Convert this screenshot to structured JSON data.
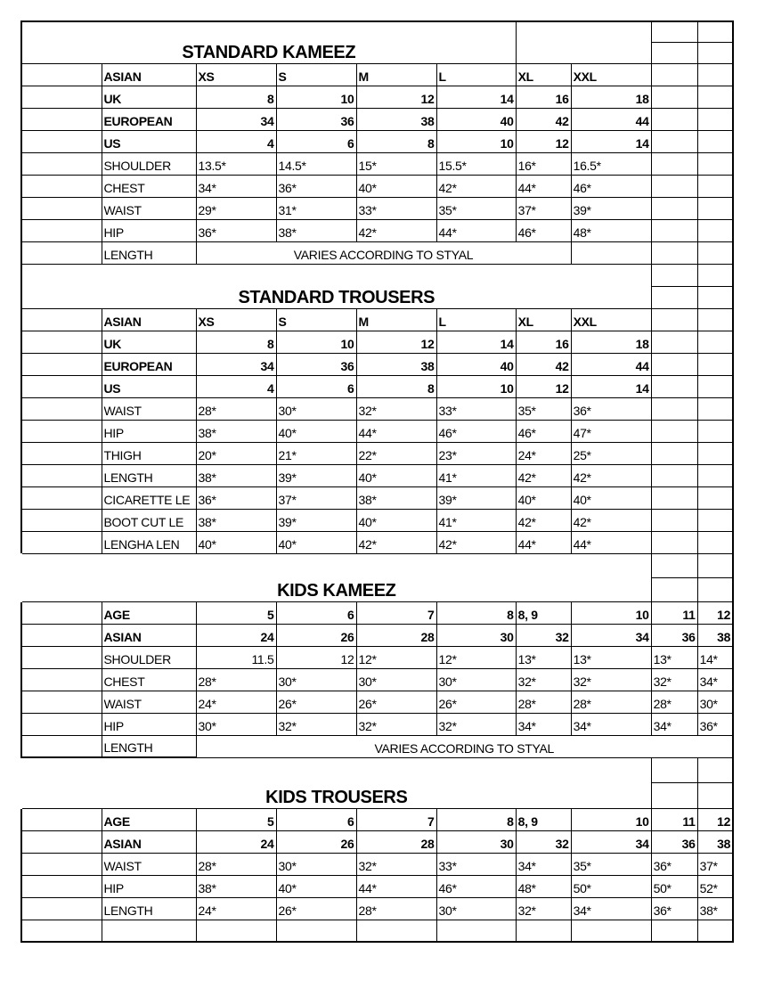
{
  "sections": [
    {
      "title": "STANDARD KAMEEZ",
      "rows": [
        {
          "label": "ASIAN",
          "emphasis": true,
          "values": [
            "XS",
            "S",
            "M",
            "L",
            "XL",
            "XXL"
          ]
        },
        {
          "label": "UK",
          "emphasis": true,
          "values": [
            "8",
            "10",
            "12",
            "14",
            "16",
            "18"
          ]
        },
        {
          "label": "EUROPEAN",
          "emphasis": true,
          "values": [
            "34",
            "36",
            "38",
            "40",
            "42",
            "44"
          ]
        },
        {
          "label": "US",
          "emphasis": true,
          "values": [
            "4",
            "6",
            "8",
            "10",
            "12",
            "14"
          ]
        },
        {
          "label": "SHOULDER",
          "values": [
            "13.5*",
            "14.5*",
            "15*",
            "15.5*",
            "16*",
            "16.5*"
          ]
        },
        {
          "label": "CHEST",
          "values": [
            "34*",
            "36*",
            "40*",
            "42*",
            "44*",
            "46*"
          ]
        },
        {
          "label": "WAIST",
          "values": [
            "29*",
            "31*",
            "33*",
            "35*",
            "37*",
            "39*"
          ]
        },
        {
          "label": "HIP",
          "values": [
            "36*",
            "38*",
            "42*",
            "44*",
            "46*",
            "48*"
          ]
        },
        {
          "label": "LENGTH",
          "note": "VARIES ACCORDING TO STYAL"
        }
      ]
    },
    {
      "title": "STANDARD TROUSERS",
      "rows": [
        {
          "label": "ASIAN",
          "emphasis": true,
          "values": [
            "XS",
            "S",
            "M",
            "L",
            "XL",
            "XXL"
          ]
        },
        {
          "label": "UK",
          "emphasis": true,
          "values": [
            "8",
            "10",
            "12",
            "14",
            "16",
            "18"
          ]
        },
        {
          "label": "EUROPEAN",
          "emphasis": true,
          "values": [
            "34",
            "36",
            "38",
            "40",
            "42",
            "44"
          ]
        },
        {
          "label": "US",
          "emphasis": true,
          "values": [
            "4",
            "6",
            "8",
            "10",
            "12",
            "14"
          ]
        },
        {
          "label": "WAIST",
          "values": [
            "28*",
            "30*",
            "32*",
            "33*",
            "35*",
            "36*"
          ]
        },
        {
          "label": "HIP",
          "values": [
            "38*",
            "40*",
            "44*",
            "46*",
            "46*",
            "47*"
          ]
        },
        {
          "label": "THIGH",
          "values": [
            "20*",
            "21*",
            "22*",
            "23*",
            "24*",
            "25*"
          ]
        },
        {
          "label": "LENGTH",
          "values": [
            "38*",
            "39*",
            "40*",
            "41*",
            "42*",
            "42*"
          ]
        },
        {
          "label": "CICARETTE LE",
          "values": [
            "36*",
            "37*",
            "38*",
            "39*",
            "40*",
            "40*"
          ]
        },
        {
          "label": "BOOT CUT LE",
          "values": [
            "38*",
            "39*",
            "40*",
            "41*",
            "42*",
            "42*"
          ]
        },
        {
          "label": "LENGHA LEN",
          "values": [
            "40*",
            "40*",
            "42*",
            "42*",
            "44*",
            "44*"
          ]
        }
      ]
    },
    {
      "title": "KIDS KAMEEZ",
      "rows": [
        {
          "label": "AGE",
          "emphasis": true,
          "values": [
            "5",
            "6",
            "7",
            "8",
            "8, 9",
            "10",
            "11",
            "12"
          ]
        },
        {
          "label": "ASIAN",
          "emphasis": true,
          "values": [
            "24",
            "26",
            "28",
            "30",
            "32",
            "34",
            "36",
            "38"
          ]
        },
        {
          "label": "SHOULDER",
          "values": [
            "11.5",
            "12",
            "12*",
            "12*",
            "13*",
            "13*",
            "13*",
            "14*"
          ]
        },
        {
          "label": "CHEST",
          "values": [
            "28*",
            "30*",
            "30*",
            "30*",
            "32*",
            "32*",
            "32*",
            "34*"
          ]
        },
        {
          "label": "WAIST",
          "values": [
            "24*",
            "26*",
            "26*",
            "26*",
            "28*",
            "28*",
            "28*",
            "30*"
          ]
        },
        {
          "label": "HIP",
          "values": [
            "30*",
            "32*",
            "32*",
            "32*",
            "34*",
            "34*",
            "34*",
            "36*"
          ]
        },
        {
          "label": "LENGTH",
          "note": "VARIES ACCORDING TO STYAL"
        }
      ]
    },
    {
      "title": "KIDS  TROUSERS",
      "rows": [
        {
          "label": "AGE",
          "emphasis": true,
          "values": [
            "5",
            "6",
            "7",
            "8",
            "8, 9",
            "10",
            "11",
            "12"
          ]
        },
        {
          "label": "ASIAN",
          "emphasis": true,
          "values": [
            "24",
            "26",
            "28",
            "30",
            "32",
            "34",
            "36",
            "38"
          ]
        },
        {
          "label": "WAIST",
          "values": [
            "28*",
            "30*",
            "32*",
            "33*",
            "34*",
            "35*",
            "36*",
            "37*"
          ]
        },
        {
          "label": "HIP",
          "values": [
            "38*",
            "40*",
            "44*",
            "46*",
            "48*",
            "50*",
            "50*",
            "52*"
          ]
        },
        {
          "label": "LENGTH",
          "values": [
            "24*",
            "26*",
            "28*",
            "30*",
            "32*",
            "34*",
            "36*",
            "38*"
          ]
        },
        {
          "label": "",
          "values": [
            "",
            "",
            "",
            "",
            "",
            "",
            "",
            ""
          ]
        }
      ]
    }
  ]
}
